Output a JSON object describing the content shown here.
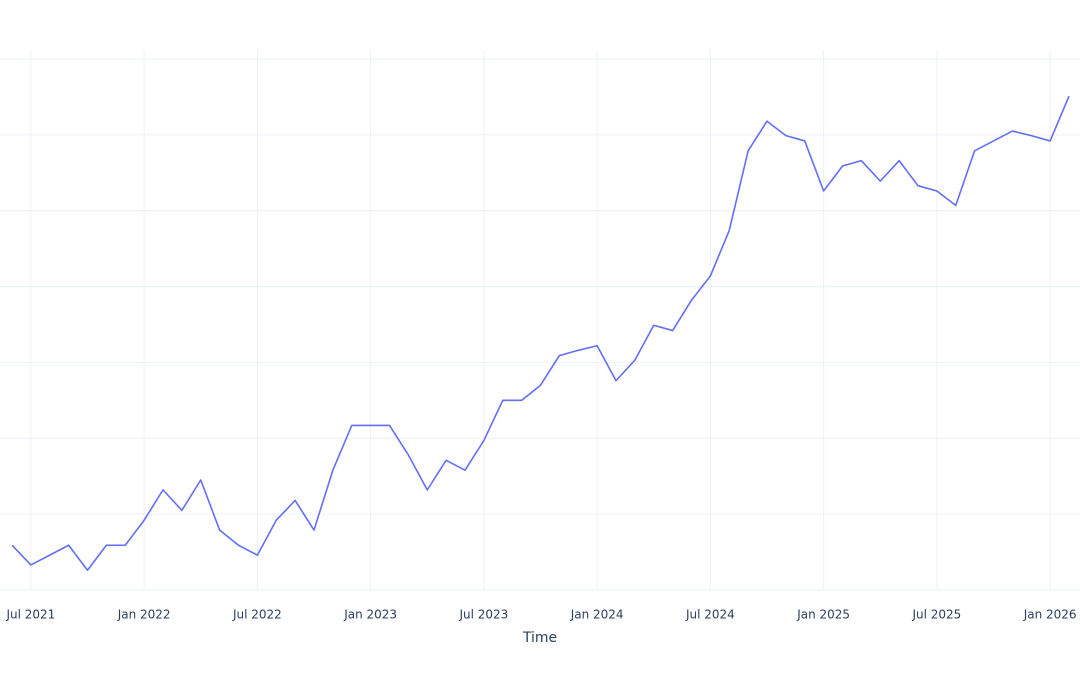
{
  "chart_data": {
    "type": "line",
    "x_label": "Time",
    "x": [
      "2021-06",
      "2021-07",
      "2021-08",
      "2021-09",
      "2021-10",
      "2021-11",
      "2021-12",
      "2022-01",
      "2022-02",
      "2022-03",
      "2022-04",
      "2022-05",
      "2022-06",
      "2022-07",
      "2022-08",
      "2022-09",
      "2022-10",
      "2022-11",
      "2022-12",
      "2023-01",
      "2023-02",
      "2023-03",
      "2023-04",
      "2023-05",
      "2023-06",
      "2023-07",
      "2023-08",
      "2023-09",
      "2023-10",
      "2023-11",
      "2023-12",
      "2024-01",
      "2024-02",
      "2024-03",
      "2024-04",
      "2024-05",
      "2024-06",
      "2024-07",
      "2024-08",
      "2024-09",
      "2024-10",
      "2024-11",
      "2024-12",
      "2025-01",
      "2025-02",
      "2025-03",
      "2025-04",
      "2025-05",
      "2025-06",
      "2025-07",
      "2025-08",
      "2025-09",
      "2025-10",
      "2025-11",
      "2025-12",
      "2026-01",
      "2026-02"
    ],
    "series": [
      {
        "color": "#636efa",
        "values": [
          0.59,
          0.33,
          0.46,
          0.59,
          0.26,
          0.59,
          0.59,
          0.92,
          1.32,
          1.05,
          1.45,
          0.79,
          0.59,
          0.46,
          0.92,
          1.18,
          0.79,
          1.58,
          2.17,
          2.17,
          2.17,
          1.78,
          1.32,
          1.71,
          1.58,
          1.97,
          2.5,
          2.5,
          2.7,
          3.09,
          3.16,
          3.22,
          2.76,
          3.03,
          3.49,
          3.42,
          3.82,
          4.14,
          4.74,
          5.79,
          6.18,
          5.99,
          5.92,
          5.26,
          5.59,
          5.66,
          5.39,
          5.66,
          5.33,
          5.26,
          5.07,
          5.79,
          5.92,
          6.05,
          5.99,
          5.92,
          6.51
        ]
      }
    ],
    "xlim": [
      "2021-06",
      "2026-02"
    ],
    "xticks": [
      {
        "value": "2021-07",
        "label": "Jul 2021"
      },
      {
        "value": "2022-01",
        "label": "Jan 2022"
      },
      {
        "value": "2022-07",
        "label": "Jul 2022"
      },
      {
        "value": "2023-01",
        "label": "Jan 2023"
      },
      {
        "value": "2023-07",
        "label": "Jul 2023"
      },
      {
        "value": "2024-01",
        "label": "Jan 2024"
      },
      {
        "value": "2024-07",
        "label": "Jul 2024"
      },
      {
        "value": "2025-01",
        "label": "Jan 2025"
      },
      {
        "value": "2025-07",
        "label": "Jul 2025"
      },
      {
        "value": "2026-01",
        "label": "Jan 2026"
      }
    ],
    "ylim": [
      0,
      7
    ],
    "ygrid": [
      0,
      1,
      2,
      3,
      4,
      5,
      6,
      7
    ],
    "grid": true
  }
}
